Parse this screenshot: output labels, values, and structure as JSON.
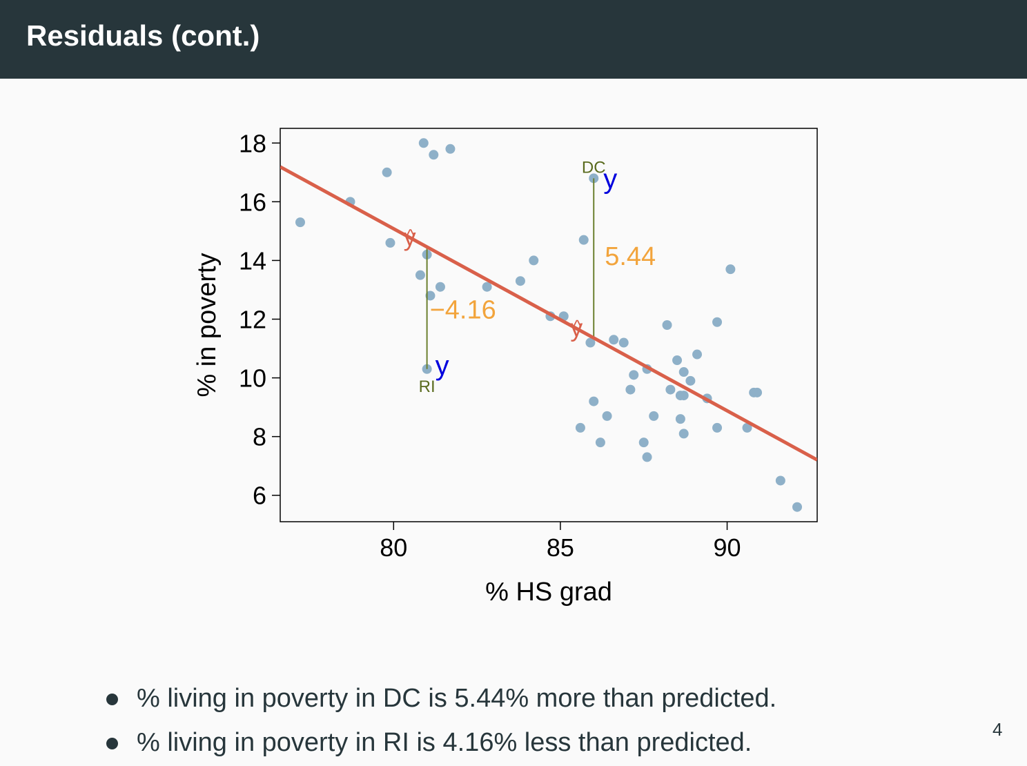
{
  "slide": {
    "title": "Residuals (cont.)",
    "page_number": "4",
    "bullets": [
      "% living in poverty in DC is 5.44% more than predicted.",
      "% living in poverty in RI is 4.16% less than predicted."
    ]
  },
  "colors": {
    "header_bg": "#27363b",
    "points": "#8eb0c8",
    "regression_line": "#d9604a",
    "residual_line": "#6b7f2e",
    "residual_label": "#f2a43c",
    "observed_y": "#0000dd",
    "predicted_y": "#d9604a",
    "state_label": "#5a6b1e"
  },
  "chart_data": {
    "type": "scatter",
    "xlabel": "% HS grad",
    "ylabel": "% in poverty",
    "xlim": [
      76.6,
      92.7
    ],
    "ylim": [
      5.1,
      18.5
    ],
    "xticks": [
      80,
      85,
      90
    ],
    "yticks": [
      6,
      8,
      10,
      12,
      14,
      16,
      18
    ],
    "grid": false,
    "regression_line": {
      "intercept": 64.68,
      "slope": -0.62
    },
    "points": [
      {
        "x": 77.2,
        "y": 15.3
      },
      {
        "x": 78.7,
        "y": 16.0
      },
      {
        "x": 79.8,
        "y": 17.0
      },
      {
        "x": 79.9,
        "y": 14.6
      },
      {
        "x": 80.9,
        "y": 18.0
      },
      {
        "x": 81.2,
        "y": 17.6
      },
      {
        "x": 81.7,
        "y": 17.8
      },
      {
        "x": 81.0,
        "y": 14.2
      },
      {
        "x": 80.8,
        "y": 13.5
      },
      {
        "x": 81.4,
        "y": 13.1
      },
      {
        "x": 81.1,
        "y": 12.8
      },
      {
        "x": 81.0,
        "y": 10.3
      },
      {
        "x": 82.8,
        "y": 13.1
      },
      {
        "x": 83.8,
        "y": 13.3
      },
      {
        "x": 84.2,
        "y": 14.0
      },
      {
        "x": 84.7,
        "y": 12.1
      },
      {
        "x": 85.1,
        "y": 12.1
      },
      {
        "x": 85.7,
        "y": 14.7
      },
      {
        "x": 86.0,
        "y": 16.8
      },
      {
        "x": 85.9,
        "y": 11.2
      },
      {
        "x": 86.6,
        "y": 11.3
      },
      {
        "x": 86.9,
        "y": 11.2
      },
      {
        "x": 87.2,
        "y": 10.1
      },
      {
        "x": 87.1,
        "y": 9.6
      },
      {
        "x": 87.6,
        "y": 10.3
      },
      {
        "x": 86.0,
        "y": 9.2
      },
      {
        "x": 86.4,
        "y": 8.7
      },
      {
        "x": 85.6,
        "y": 8.3
      },
      {
        "x": 86.2,
        "y": 7.8
      },
      {
        "x": 87.8,
        "y": 8.7
      },
      {
        "x": 87.5,
        "y": 7.8
      },
      {
        "x": 87.6,
        "y": 7.3
      },
      {
        "x": 88.2,
        "y": 11.8
      },
      {
        "x": 88.5,
        "y": 10.6
      },
      {
        "x": 88.7,
        "y": 10.2
      },
      {
        "x": 88.9,
        "y": 9.9
      },
      {
        "x": 89.1,
        "y": 10.8
      },
      {
        "x": 88.3,
        "y": 9.6
      },
      {
        "x": 88.6,
        "y": 9.4
      },
      {
        "x": 88.7,
        "y": 9.4
      },
      {
        "x": 88.6,
        "y": 8.6
      },
      {
        "x": 88.7,
        "y": 8.1
      },
      {
        "x": 89.4,
        "y": 9.3
      },
      {
        "x": 89.7,
        "y": 11.9
      },
      {
        "x": 90.1,
        "y": 13.7
      },
      {
        "x": 89.7,
        "y": 8.3
      },
      {
        "x": 90.6,
        "y": 8.3
      },
      {
        "x": 90.8,
        "y": 9.5
      },
      {
        "x": 90.9,
        "y": 9.5
      },
      {
        "x": 91.6,
        "y": 6.5
      },
      {
        "x": 92.1,
        "y": 5.6
      }
    ],
    "annotations": [
      {
        "state": "DC",
        "x": 86.0,
        "observed": 16.8,
        "predicted": 11.36,
        "residual_label": "5.44"
      },
      {
        "state": "RI",
        "x": 81.0,
        "observed": 10.3,
        "predicted": 14.46,
        "residual_label": "−4.16"
      }
    ],
    "observed_symbol": "y",
    "predicted_symbol": "y",
    "hat_symbol": "^"
  }
}
